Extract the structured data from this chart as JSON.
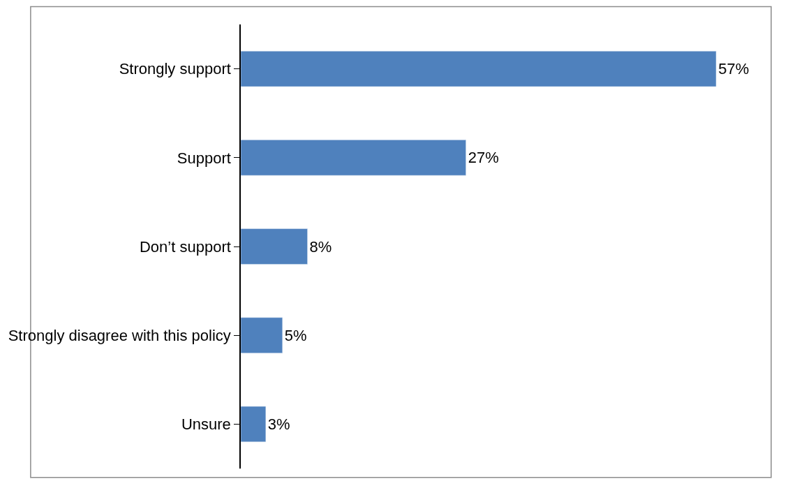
{
  "chart_data": {
    "type": "bar",
    "orientation": "horizontal",
    "categories": [
      "Strongly support",
      "Support",
      "Don’t support",
      "Strongly disagree with this policy",
      "Unsure"
    ],
    "values": [
      57,
      27,
      8,
      5,
      3
    ],
    "value_labels": [
      "57%",
      "27%",
      "8%",
      "5%",
      "3%"
    ],
    "color": "#4f81bd",
    "tick_labels": "y"
  }
}
